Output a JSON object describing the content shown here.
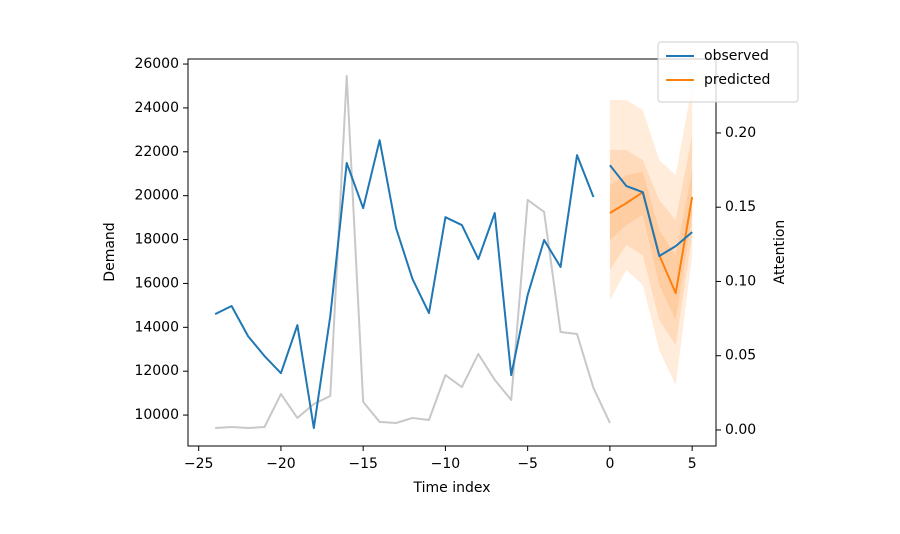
{
  "chart_data": {
    "type": "line",
    "xlabel": "Time index",
    "ylabel": "Demand",
    "y2label": "Attention",
    "xlim": [
      -25.65,
      6.45
    ],
    "ylim": [
      8590,
      26230
    ],
    "y2lim": [
      -0.0108,
      0.2498
    ],
    "xticks": [
      {
        "value": -25,
        "label": "−25"
      },
      {
        "value": -20,
        "label": "−20"
      },
      {
        "value": -15,
        "label": "−15"
      },
      {
        "value": -10,
        "label": "−10"
      },
      {
        "value": -5,
        "label": "−5"
      },
      {
        "value": 0,
        "label": "0"
      },
      {
        "value": 5,
        "label": "5"
      }
    ],
    "yticks": [
      10000,
      12000,
      14000,
      16000,
      18000,
      20000,
      22000,
      24000,
      26000
    ],
    "y2ticks": [
      {
        "value": 0,
        "label": "0.00"
      },
      {
        "value": 0.05,
        "label": "0.05"
      },
      {
        "value": 0.1,
        "label": "0.10"
      },
      {
        "value": 0.15,
        "label": "0.15"
      },
      {
        "value": 0.2,
        "label": "0.20"
      }
    ],
    "legend": "upper right",
    "series": [
      {
        "name": "observed",
        "color": "#1f77b4",
        "x": [
          -24,
          -23,
          -22,
          -21,
          -20,
          -19,
          -18,
          -17,
          -16,
          -15,
          -14,
          -13,
          -12,
          -11,
          -10,
          -9,
          -8,
          -7,
          -6,
          -5,
          -4,
          -3,
          -2,
          -1
        ],
        "values": [
          14600,
          14970,
          13600,
          12690,
          11910,
          14100,
          9410,
          14510,
          21490,
          19430,
          22530,
          18520,
          16200,
          14650,
          19020,
          18660,
          17110,
          19210,
          11820,
          15470,
          17980,
          16750,
          21850,
          19940
        ]
      },
      {
        "name": "predicted",
        "color": "#ff7f0e",
        "x": [
          0,
          1,
          2,
          3,
          4,
          5
        ],
        "values": [
          19210,
          19660,
          20160,
          17290,
          15560,
          19940
        ]
      },
      {
        "name": "observed",
        "color": "#1f77b4",
        "x": [
          0,
          1,
          2,
          3,
          4,
          5
        ],
        "values": [
          21390,
          20440,
          20160,
          17250,
          17700,
          18340
        ]
      },
      {
        "color": "#c8c8c8",
        "axis": "y2",
        "x": [
          -24,
          -23,
          -22,
          -21,
          -20,
          -19,
          -18,
          -17,
          -16,
          -15,
          -14,
          -13,
          -12,
          -11,
          -10,
          -9,
          -8,
          -7,
          -6,
          -5,
          -4,
          -3,
          -2,
          -1,
          0
        ],
        "values": [
          0.0013,
          0.002,
          0.0013,
          0.002,
          0.0242,
          0.0081,
          0.0175,
          0.0229,
          0.2384,
          0.0189,
          0.0054,
          0.0047,
          0.0081,
          0.0067,
          0.037,
          0.0289,
          0.0512,
          0.0337,
          0.0202,
          0.1549,
          0.1468,
          0.066,
          0.0646,
          0.0283,
          0.0047
        ]
      }
    ],
    "bands": [
      {
        "color": "#ff7f0e",
        "x": [
          0,
          1,
          2,
          3,
          4,
          5
        ],
        "upper": [
          24360,
          24360,
          23900,
          21620,
          20940,
          25040
        ],
        "lower": [
          15240,
          16610,
          15930,
          12960,
          11370,
          17290
        ]
      },
      {
        "color": "#ff7f0e",
        "x": [
          0,
          1,
          2,
          3,
          4,
          5
        ],
        "upper": [
          22080,
          22080,
          21620,
          19800,
          18890,
          22760
        ],
        "lower": [
          16610,
          17750,
          17290,
          14330,
          13190,
          18200
        ]
      },
      {
        "color": "#ff7f0e",
        "x": [
          0,
          1,
          2,
          3,
          4,
          5
        ],
        "upper": [
          20480,
          20940,
          21080,
          18430,
          17290,
          21170
        ],
        "lower": [
          17980,
          18660,
          19120,
          15930,
          14330,
          19120
        ]
      }
    ]
  }
}
